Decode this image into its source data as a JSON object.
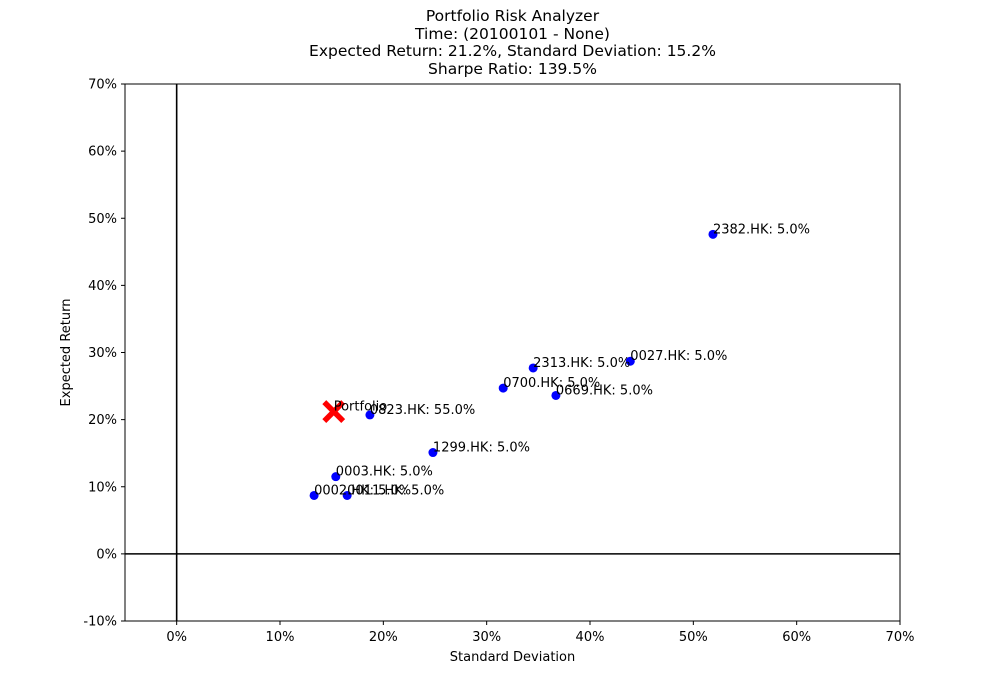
{
  "chart_data": {
    "type": "scatter",
    "title_lines": [
      "Portfolio Risk Analyzer",
      "Time: (20100101 - None)",
      "Expected Return: 21.2%, Standard Deviation: 15.2%",
      "Sharpe Ratio: 139.5%"
    ],
    "xlabel": "Standard Deviation",
    "ylabel": "Expected Return",
    "xlim": [
      -5,
      70
    ],
    "ylim": [
      -10,
      70
    ],
    "x_ticks": [
      0,
      10,
      20,
      30,
      40,
      50,
      60,
      70
    ],
    "x_tick_labels": [
      "0%",
      "10%",
      "20%",
      "30%",
      "40%",
      "50%",
      "60%",
      "70%"
    ],
    "y_ticks": [
      -10,
      0,
      10,
      20,
      30,
      40,
      50,
      60,
      70
    ],
    "y_tick_labels": [
      "-10%",
      "0%",
      "10%",
      "20%",
      "30%",
      "40%",
      "50%",
      "60%",
      "70%"
    ],
    "grid": false,
    "reference_lines": {
      "x": 0,
      "y": 0
    },
    "point_color": "#0000ff",
    "portfolio_color": "#ff0000",
    "points": [
      {
        "label": "2382.HK: 5.0%",
        "x": 51.9,
        "y": 47.6
      },
      {
        "label": "0027.HK: 5.0%",
        "x": 43.9,
        "y": 28.7
      },
      {
        "label": "2313.HK: 5.0%",
        "x": 34.5,
        "y": 27.7
      },
      {
        "label": "0700.HK: 5.0%",
        "x": 31.6,
        "y": 24.7
      },
      {
        "label": "0669.HK: 5.0%",
        "x": 36.7,
        "y": 23.6
      },
      {
        "label": "0823.HK: 55.0%",
        "x": 18.7,
        "y": 20.7
      },
      {
        "label": "1299.HK: 5.0%",
        "x": 24.8,
        "y": 15.1
      },
      {
        "label": "0003.HK: 5.0%",
        "x": 15.4,
        "y": 11.5
      },
      {
        "label": "0002.HK: 5.0%",
        "x": 13.3,
        "y": 8.7
      },
      {
        "label": "0011.HK: 5.0%",
        "x": 16.5,
        "y": 8.7
      }
    ],
    "portfolio": {
      "label": "Portfolio",
      "x": 15.2,
      "y": 21.2
    }
  }
}
